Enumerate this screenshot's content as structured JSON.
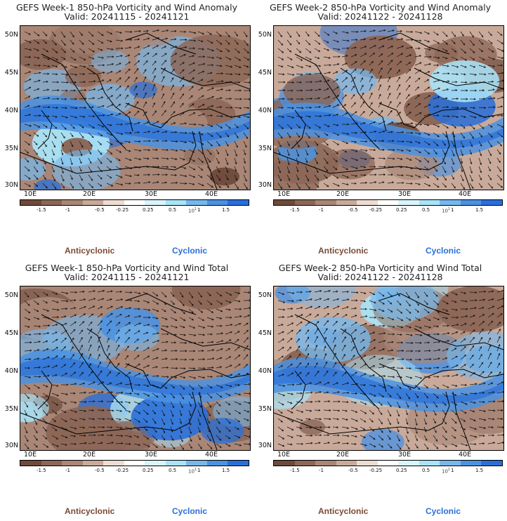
{
  "panels": [
    {
      "title": "GEFS Week-1 850-hPa Vorticity and Wind Anomaly",
      "valid": "Valid: 20241115 - 20241121",
      "scale_note": "10",
      "scale_exp": "1"
    },
    {
      "title": "GEFS Week-2 850-hPa Vorticity and Wind Anomaly",
      "valid": "Valid: 20241122 - 20241128",
      "scale_note": "10",
      "scale_exp": "1"
    },
    {
      "title": "GEFS Week-1 850-hPa Vorticity and Wind Total",
      "valid": "Valid: 20241115 - 20241121",
      "scale_note": "10",
      "scale_exp": "1"
    },
    {
      "title": "GEFS Week-2 850-hPa Vorticity and Wind Total",
      "valid": "Valid: 20241122 - 20241128",
      "scale_note": "10",
      "scale_exp": "1"
    }
  ],
  "map": {
    "lat_labels": [
      "50N",
      "45N",
      "40N",
      "35N",
      "30N"
    ],
    "lon_labels": [
      "10E",
      "20E",
      "30E",
      "40E"
    ]
  },
  "colorbar": {
    "colors": [
      "#6e4a3a",
      "#8c6656",
      "#a98676",
      "#c9aa9a",
      "#ecdcd2",
      "#ffffff",
      "#d9f4fb",
      "#a9e3f7",
      "#77b8ec",
      "#4b92e2",
      "#2a6fd8"
    ],
    "tick_labels": [
      "-1.5",
      "-1",
      "-0.5",
      "-0.25",
      "0.25",
      "0.5",
      "1",
      "1.5"
    ]
  },
  "legend": {
    "anticyclonic": "Anticyclonic",
    "cyclonic": "Cyclonic",
    "anticyclonic_color": "#7a4a36",
    "cyclonic_color": "#2a6fd8"
  }
}
